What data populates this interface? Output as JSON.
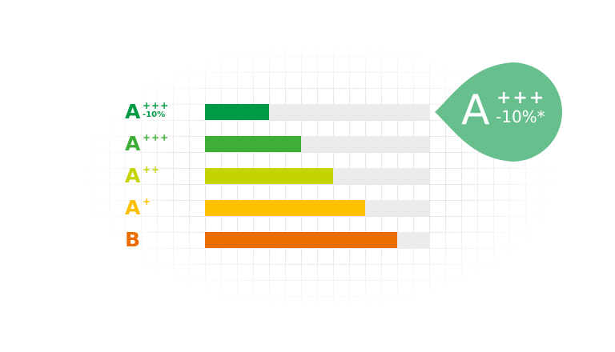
{
  "rows": [
    {
      "letter": "A",
      "sup": "+++",
      "sub": "-10%",
      "color": "#009a44",
      "fill": 0.2857
    },
    {
      "letter": "A",
      "sup": "+++",
      "sub": "",
      "color": "#3fae38",
      "fill": 0.4286
    },
    {
      "letter": "A",
      "sup": "++",
      "sub": "",
      "color": "#c3d400",
      "fill": 0.5714
    },
    {
      "letter": "A",
      "sup": "+",
      "sub": "",
      "color": "#fcc000",
      "fill": 0.7143
    },
    {
      "letter": "B",
      "sup": "",
      "sub": "",
      "color": "#eb6c00",
      "fill": 0.8571
    }
  ],
  "badge": {
    "letter": "A",
    "sup": "+++",
    "sub": "-10%*",
    "color": "#66bf8c"
  },
  "track_color": "#ebebeb"
}
